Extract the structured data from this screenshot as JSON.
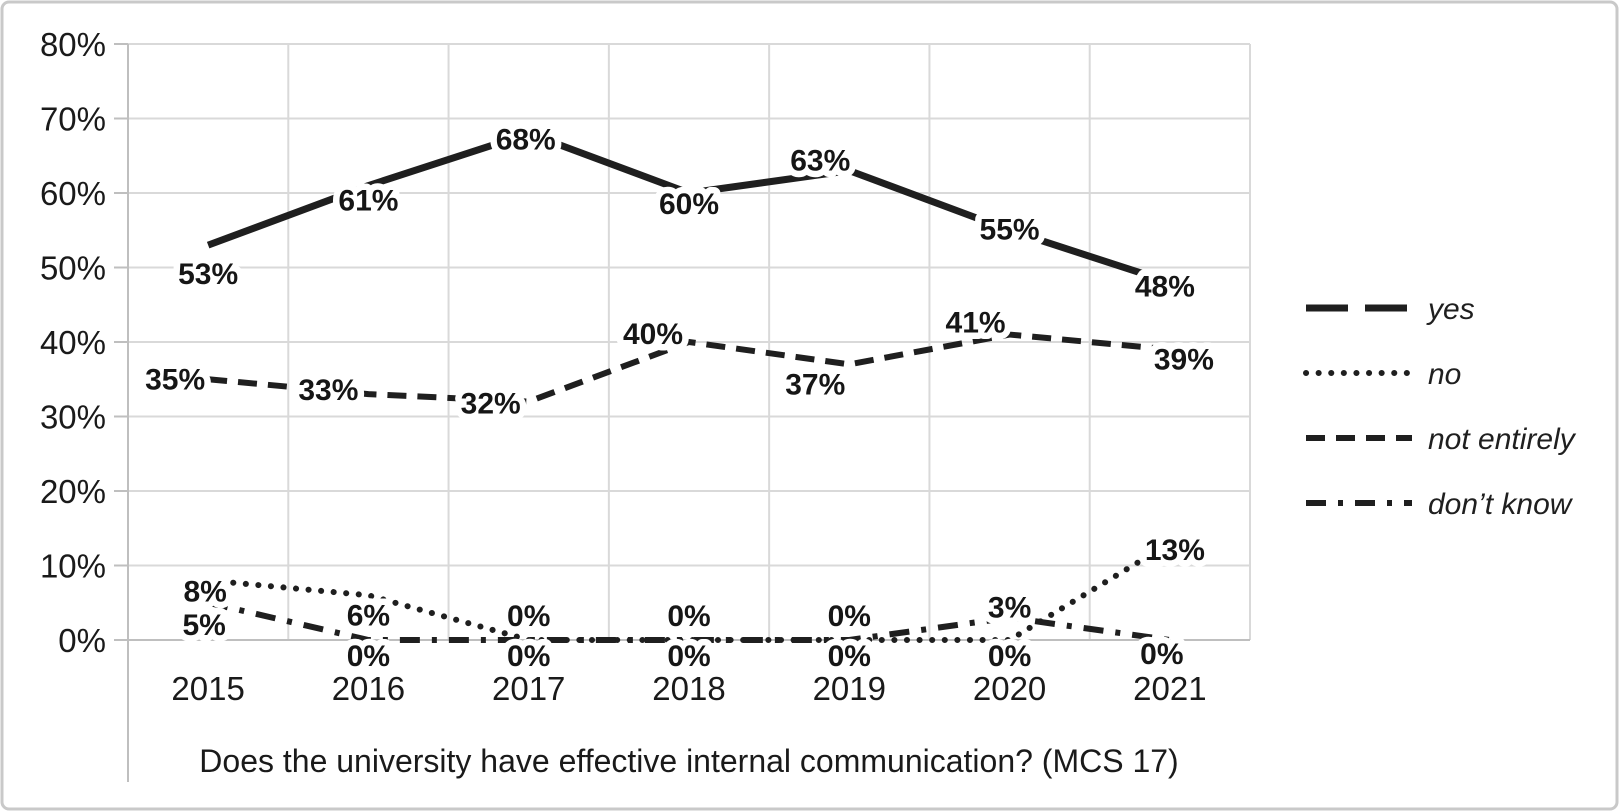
{
  "chart_data": {
    "type": "line",
    "title": "Does the university have effective internal communication? (MCS 17)",
    "categories": [
      "2015",
      "2016",
      "2017",
      "2018",
      "2019",
      "2020",
      "2021"
    ],
    "series": [
      {
        "name": "yes",
        "line_style": "solid",
        "values": [
          53,
          61,
          68,
          60,
          63,
          55,
          48
        ]
      },
      {
        "name": "no",
        "line_style": "dotted",
        "values": [
          8,
          6,
          0,
          0,
          0,
          0,
          13
        ]
      },
      {
        "name": "not entirely",
        "line_style": "dashed",
        "values": [
          35,
          33,
          32,
          40,
          37,
          41,
          39
        ]
      },
      {
        "name": "don’t know",
        "line_style": "dashdot",
        "values": [
          5,
          0,
          0,
          0,
          0,
          3,
          0
        ]
      }
    ],
    "value_label_suffix": "%",
    "ylim": [
      0,
      80
    ],
    "ytick_step": 10,
    "ytick_labels": [
      "0%",
      "10%",
      "20%",
      "30%",
      "40%",
      "50%",
      "60%",
      "70%",
      "80%"
    ],
    "grid": true,
    "legend_position": "right",
    "colors": {
      "line": "#1f1f1f",
      "grid": "#d9d9d9",
      "axis": "#bfbfbf",
      "text": "#1a1a1a",
      "background": "#ffffff",
      "figure_border": "#c9c9c9"
    }
  }
}
